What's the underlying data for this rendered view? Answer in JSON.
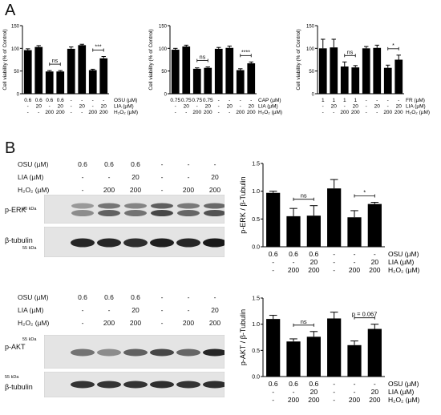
{
  "panels": {
    "a": "A",
    "b": "B"
  },
  "chart_data": [
    {
      "type": "bar",
      "panel": "A-1",
      "ylabel": "Cell viability (% of Control)",
      "ylim": [
        0,
        150
      ],
      "yticks": [
        "0",
        "50",
        "100",
        "150"
      ],
      "values": [
        96,
        103,
        49,
        49,
        99,
        107,
        52,
        78
      ],
      "errors": [
        3,
        3,
        2,
        2,
        4,
        2,
        2,
        4
      ],
      "rows": [
        {
          "label": "OSU (µM)",
          "cells": [
            "0.6",
            "0.6",
            "0.6",
            "0.6",
            "-",
            "-",
            "-",
            "-"
          ]
        },
        {
          "label": "LIA (µM)",
          "cells": [
            "-",
            "20",
            "-",
            "20",
            "-",
            "20",
            "-",
            "20"
          ]
        },
        {
          "label": "H₂O₂ (µM)",
          "cells": [
            "-",
            "-",
            "200",
            "200",
            "-",
            "-",
            "200",
            "200"
          ]
        }
      ],
      "annotations": [
        {
          "bars": [
            2,
            3
          ],
          "text": "ns"
        },
        {
          "bars": [
            6,
            7
          ],
          "text": "***"
        }
      ]
    },
    {
      "type": "bar",
      "panel": "A-2",
      "ylabel": "Cell viability (% of Control)",
      "ylim": [
        0,
        150
      ],
      "yticks": [
        "0",
        "50",
        "100",
        "150"
      ],
      "values": [
        97,
        104,
        55,
        57,
        99,
        101,
        52,
        67
      ],
      "errors": [
        3,
        3,
        2,
        2,
        3,
        4,
        3,
        3
      ],
      "rows": [
        {
          "label": "CAP (µM)",
          "cells": [
            "0.75",
            "0.75",
            "0.75",
            "0.75",
            "-",
            "-",
            "-",
            "-"
          ]
        },
        {
          "label": "LIA (µM)",
          "cells": [
            "-",
            "20",
            "-",
            "20",
            "-",
            "20",
            "-",
            "20"
          ]
        },
        {
          "label": "H₂O₂ (µM)",
          "cells": [
            "-",
            "-",
            "200",
            "200",
            "-",
            "-",
            "200",
            "200"
          ]
        }
      ],
      "annotations": [
        {
          "bars": [
            2,
            3
          ],
          "text": "ns"
        },
        {
          "bars": [
            6,
            7
          ],
          "text": "****"
        }
      ]
    },
    {
      "type": "bar",
      "panel": "A-3",
      "ylabel": "Cell viability (% of Control)",
      "ylim": [
        0,
        150
      ],
      "yticks": [
        "0",
        "50",
        "100",
        "150"
      ],
      "values": [
        100,
        102,
        60,
        58,
        100,
        101,
        57,
        75
      ],
      "errors": [
        20,
        18,
        10,
        4,
        4,
        6,
        6,
        10
      ],
      "rows": [
        {
          "label": "FR (µM)",
          "cells": [
            "1",
            "1",
            "1",
            "1",
            "-",
            "-",
            "-",
            "-"
          ]
        },
        {
          "label": "LIA (µM)",
          "cells": [
            "-",
            "20",
            "-",
            "20",
            "-",
            "20",
            "-",
            "20"
          ]
        },
        {
          "label": "H₂O₂ (µM)",
          "cells": [
            "-",
            "-",
            "200",
            "200",
            "-",
            "-",
            "200",
            "200"
          ]
        }
      ],
      "annotations": [
        {
          "bars": [
            2,
            3
          ],
          "text": "ns"
        },
        {
          "bars": [
            6,
            7
          ],
          "text": "*"
        }
      ]
    },
    {
      "type": "bar",
      "panel": "B-ERK",
      "ylabel": "p-ERK / β-Tubulin",
      "ylim": [
        0,
        1.5
      ],
      "yticks": [
        "0.0",
        "0.5",
        "1.0",
        "1.5"
      ],
      "values": [
        0.97,
        0.55,
        0.56,
        1.05,
        0.53,
        0.77
      ],
      "errors": [
        0.03,
        0.14,
        0.18,
        0.16,
        0.12,
        0.03
      ],
      "rows": [
        {
          "label": "OSU (µM)",
          "cells": [
            "0.6",
            "0.6",
            "0.6",
            "-",
            "-",
            "-"
          ]
        },
        {
          "label": "LIA (µM)",
          "cells": [
            "-",
            "-",
            "20",
            "-",
            "-",
            "20"
          ]
        },
        {
          "label": "H₂O₂ (µM)",
          "cells": [
            "-",
            "200",
            "200",
            "-",
            "200",
            "200"
          ]
        }
      ],
      "annotations": [
        {
          "bars": [
            1,
            2
          ],
          "text": "ns"
        },
        {
          "bars": [
            4,
            5
          ],
          "text": "*"
        }
      ]
    },
    {
      "type": "bar",
      "panel": "B-AKT",
      "ylabel": "p-AKT / β-Tubulin",
      "ylim": [
        0,
        1.5
      ],
      "yticks": [
        "0.0",
        "0.5",
        "1.0",
        "1.5"
      ],
      "values": [
        1.1,
        0.67,
        0.76,
        1.11,
        0.6,
        0.91
      ],
      "errors": [
        0.07,
        0.05,
        0.1,
        0.12,
        0.08,
        0.09
      ],
      "rows": [
        {
          "label": "OSU (µM)",
          "cells": [
            "0.6",
            "0.6",
            "0.6",
            "-",
            "-",
            "-"
          ]
        },
        {
          "label": "LIA (µM)",
          "cells": [
            "-",
            "-",
            "20",
            "-",
            "-",
            "20"
          ]
        },
        {
          "label": "H₂O₂ (µM)",
          "cells": [
            "-",
            "200",
            "200",
            "-",
            "200",
            "200"
          ]
        }
      ],
      "annotations": [
        {
          "bars": [
            1,
            2
          ],
          "text": "ns"
        },
        {
          "bars": [
            4,
            5
          ],
          "text": "p = 0.067"
        }
      ]
    }
  ],
  "blots": [
    {
      "conditions": [
        {
          "label": "OSU (µM)",
          "cells": [
            "0.6",
            "0.6",
            "0.6",
            "-",
            "-",
            "-"
          ]
        },
        {
          "label": "LIA (µM)",
          "cells": [
            "-",
            "-",
            "20",
            "-",
            "-",
            "20"
          ]
        },
        {
          "label": "H₂O₂ (µM)",
          "cells": [
            "-",
            "200",
            "200",
            "-",
            "200",
            "200"
          ]
        }
      ],
      "band_top": "p-ERK",
      "band_bottom": "β-tubulin",
      "kda_top": "40 kDa",
      "kda_bottom": "55 kDa",
      "intensity_top": [
        0.45,
        0.62,
        0.55,
        0.72,
        0.6,
        0.68
      ],
      "intensity_bottom": [
        0.85,
        0.85,
        0.82,
        0.88,
        0.85,
        0.9
      ]
    },
    {
      "conditions": [
        {
          "label": "OSU (µM)",
          "cells": [
            "0.6",
            "0.6",
            "0.6",
            "-",
            "-",
            "-"
          ]
        },
        {
          "label": "LIA (µM)",
          "cells": [
            "-",
            "-",
            "20",
            "-",
            "-",
            "20"
          ]
        },
        {
          "label": "H₂O₂ (µM)",
          "cells": [
            "-",
            "200",
            "200",
            "-",
            "200",
            "200"
          ]
        }
      ],
      "band_top": "p-AKT",
      "band_bottom": "β-tubulin",
      "kda_top": "55 kDa",
      "kda_bottom": "55 kDa",
      "intensity_top": [
        0.55,
        0.45,
        0.62,
        0.72,
        0.6,
        0.85
      ],
      "intensity_bottom": [
        0.8,
        0.8,
        0.8,
        0.82,
        0.8,
        0.82
      ]
    }
  ]
}
